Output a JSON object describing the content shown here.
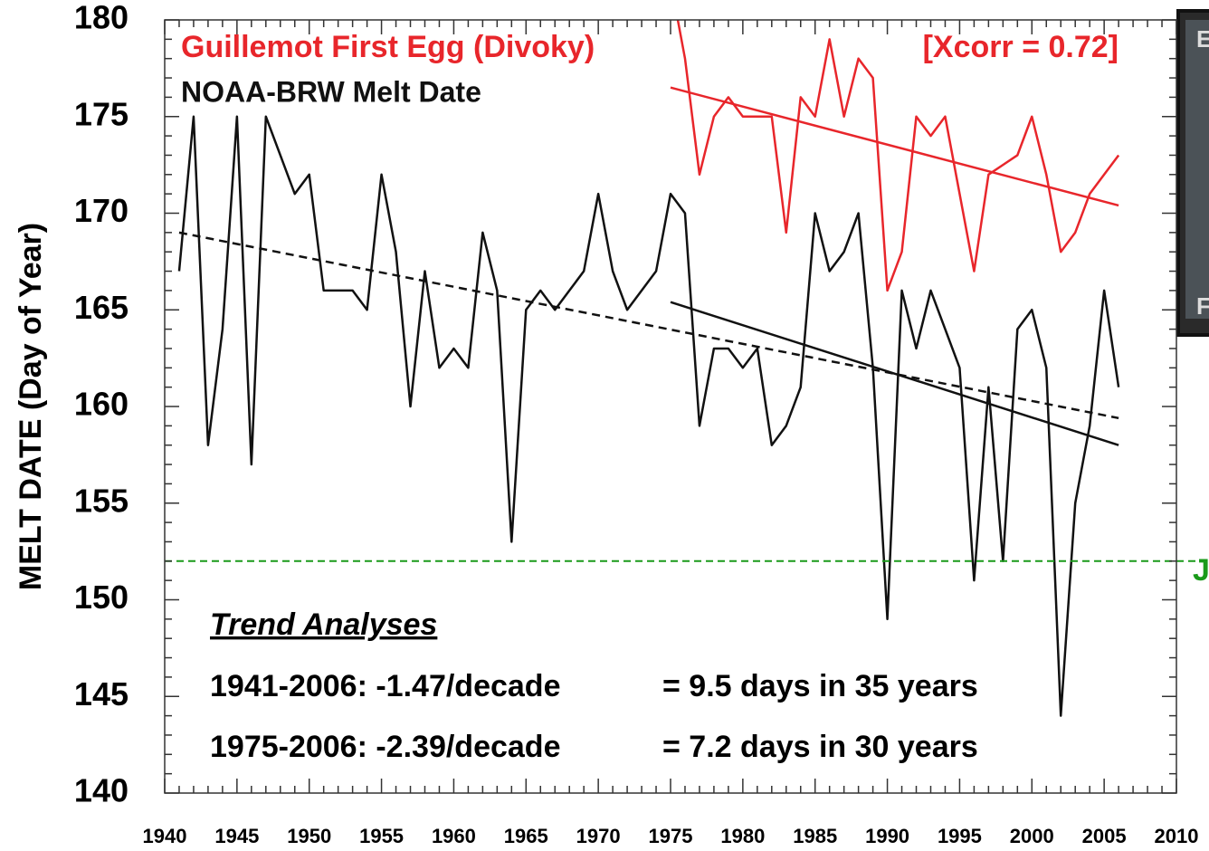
{
  "chart_data": {
    "type": "line",
    "ylabel": "MELT DATE (Day of Year)",
    "xlim": [
      1940,
      2010
    ],
    "xticks": [
      1940,
      1945,
      1950,
      1955,
      1960,
      1965,
      1970,
      1975,
      1980,
      1985,
      1990,
      1995,
      2000,
      2005,
      2010
    ],
    "ylim": [
      140,
      180
    ],
    "yticks": [
      140,
      145,
      150,
      155,
      160,
      165,
      170,
      175,
      180
    ],
    "minor_ticks": true,
    "series": [
      {
        "name": "Guillemot First Egg (Divoky)",
        "color": "#e8262b",
        "x": [
          1975,
          1976,
          1977,
          1978,
          1979,
          1980,
          1981,
          1982,
          1983,
          1984,
          1985,
          1986,
          1987,
          1988,
          1989,
          1990,
          1991,
          1992,
          1993,
          1994,
          1995,
          1996,
          1997,
          1998,
          1999,
          2000,
          2001,
          2002,
          2003,
          2004,
          2005,
          2006
        ],
        "values": [
          182,
          178,
          172,
          175,
          176,
          175,
          175,
          175,
          169,
          176,
          175,
          179,
          175,
          178,
          177,
          166,
          168,
          175,
          174,
          175,
          171,
          167,
          172,
          172.5,
          173,
          175,
          172,
          168,
          169,
          171,
          172,
          173
        ]
      },
      {
        "name": "NOAA-BRW Melt Date",
        "color": "#111111",
        "x": [
          1941,
          1942,
          1943,
          1944,
          1945,
          1946,
          1947,
          1948,
          1949,
          1950,
          1951,
          1952,
          1953,
          1954,
          1955,
          1956,
          1957,
          1958,
          1959,
          1960,
          1961,
          1962,
          1963,
          1964,
          1965,
          1966,
          1967,
          1968,
          1969,
          1970,
          1971,
          1972,
          1973,
          1974,
          1975,
          1976,
          1977,
          1978,
          1979,
          1980,
          1981,
          1982,
          1983,
          1984,
          1985,
          1986,
          1987,
          1988,
          1989,
          1990,
          1991,
          1992,
          1993,
          1994,
          1995,
          1996,
          1997,
          1998,
          1999,
          2000,
          2001,
          2002,
          2003,
          2004,
          2005,
          2006
        ],
        "values": [
          167,
          175,
          158,
          164,
          175,
          157,
          175,
          173,
          171,
          172,
          166,
          166,
          166,
          165,
          172,
          168,
          160,
          167,
          162,
          163,
          162,
          169,
          166,
          153,
          165,
          166,
          165,
          166,
          167,
          171,
          167,
          165,
          166,
          167,
          171,
          170,
          159,
          163,
          163,
          162,
          163,
          158,
          159,
          161,
          170,
          167,
          168,
          170,
          162,
          149,
          166,
          163,
          166,
          164,
          162,
          151,
          161,
          152,
          164,
          165,
          162,
          144,
          155,
          159,
          166,
          161
        ]
      }
    ],
    "trends": [
      {
        "color": "#111111",
        "dashed": true,
        "x": [
          1941,
          2006
        ],
        "values": [
          169,
          159.4
        ]
      },
      {
        "color": "#111111",
        "dashed": false,
        "x": [
          1975,
          2006
        ],
        "values": [
          165.4,
          158
        ]
      },
      {
        "color": "#e8262b",
        "dashed": false,
        "x": [
          1975,
          2006
        ],
        "values": [
          176.5,
          170.4
        ]
      }
    ],
    "hline": {
      "value": 152,
      "color": "#1a9a1a",
      "label": "J"
    },
    "correlation_label": "[Xcorr = 0.72]",
    "inset_labels": [
      "E",
      "F"
    ],
    "trend_box": {
      "title": "Trend Analyses",
      "lines": [
        [
          "1941-2006: -1.47/decade",
          "= 9.5 days in 35 years"
        ],
        [
          "1975-2006: -2.39/decade",
          "= 7.2 days in 30 years"
        ]
      ]
    }
  }
}
